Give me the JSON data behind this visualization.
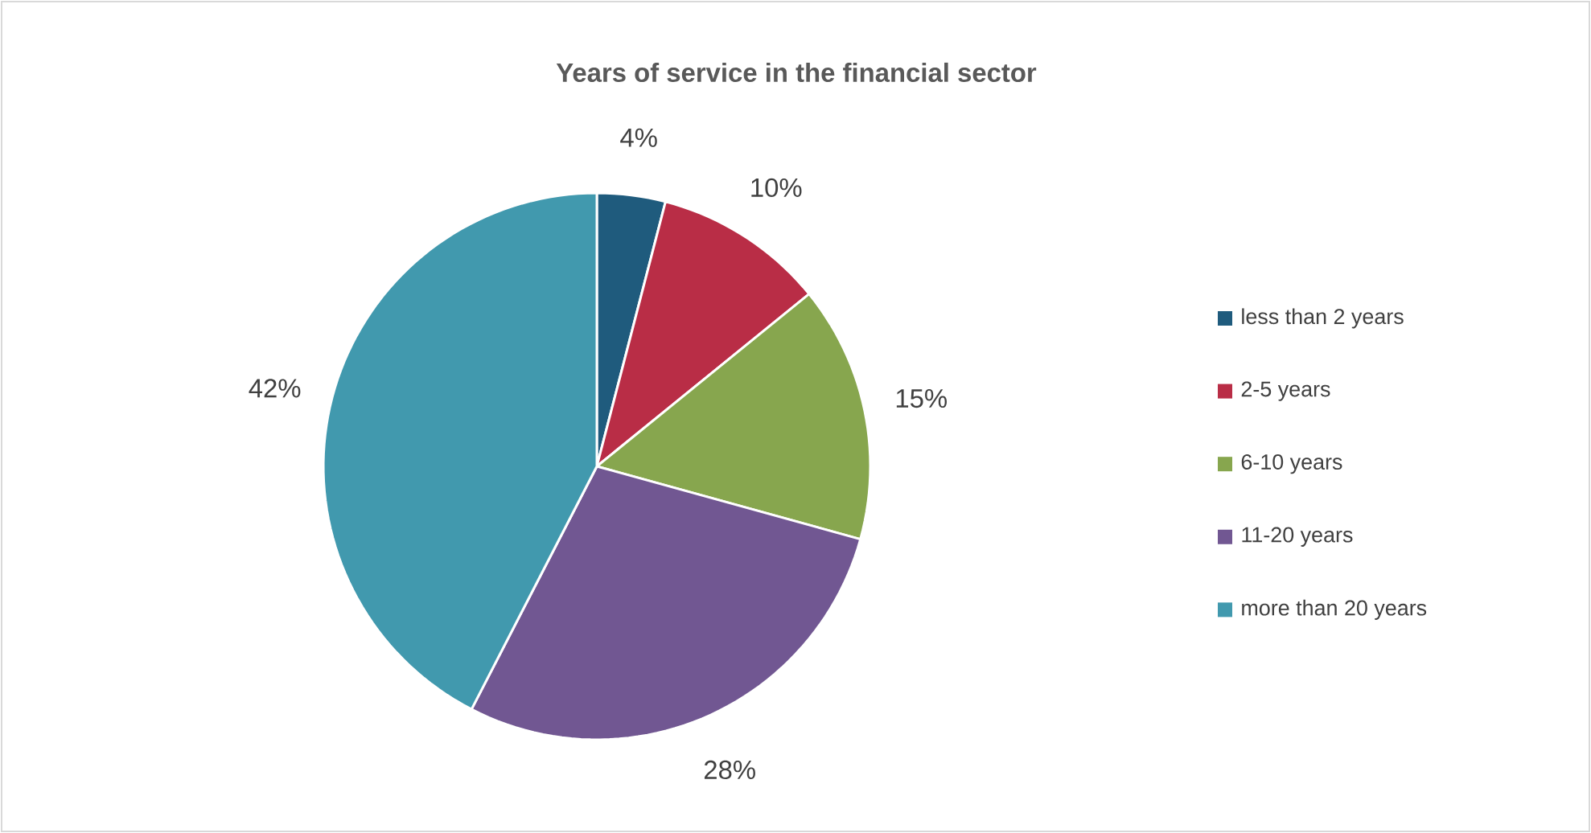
{
  "chart_data": {
    "type": "pie",
    "title": "Years of service in the financial sector",
    "categories": [
      "less than 2 years",
      "2-5 years",
      "6-10 years",
      "11-20 years",
      "more than 20 years"
    ],
    "values": [
      4,
      10,
      15,
      28,
      42
    ],
    "value_labels": [
      "4%",
      "10%",
      "15%",
      "28%",
      "42%"
    ],
    "colors": [
      "#1f5b7d",
      "#b92d46",
      "#87a64e",
      "#715792",
      "#4199ae"
    ],
    "legend": "right"
  }
}
